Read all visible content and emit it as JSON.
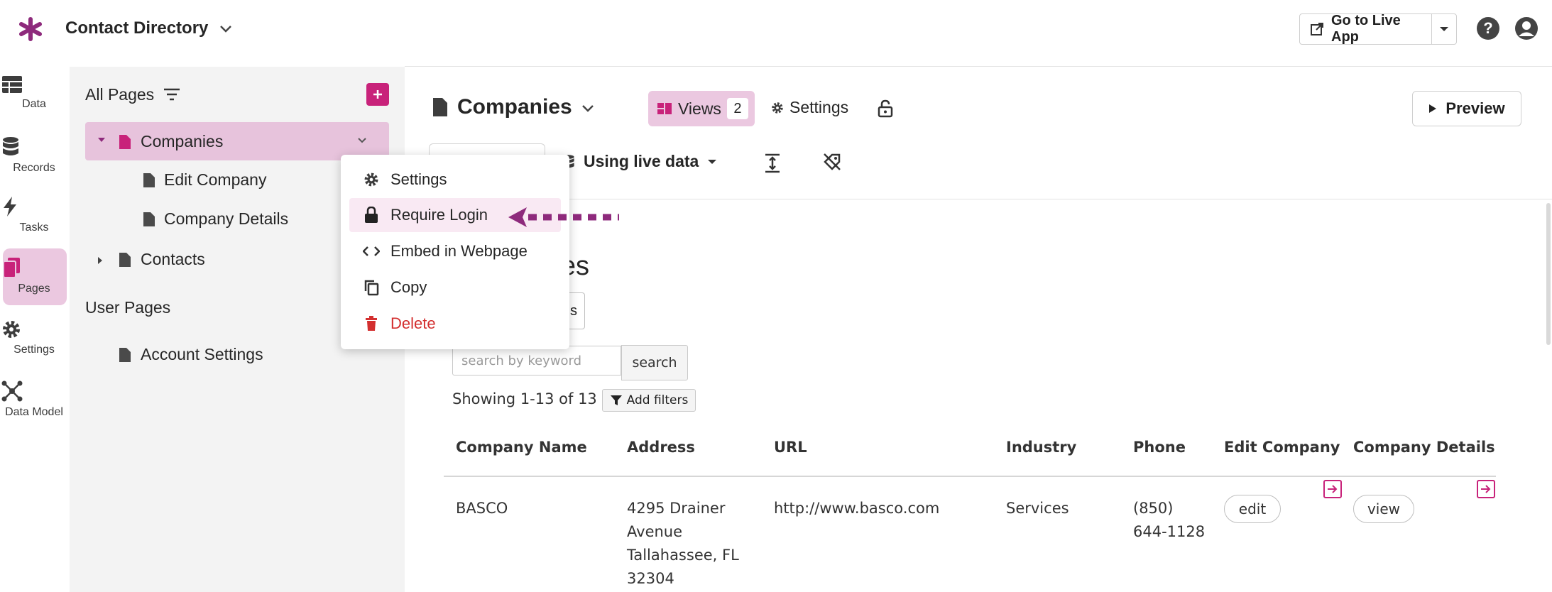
{
  "header": {
    "app_title": "Contact Directory",
    "live_app_label": "Go to Live App"
  },
  "nav": {
    "items": [
      {
        "label": "Data",
        "icon": "table-icon"
      },
      {
        "label": "Records",
        "icon": "database-icon"
      },
      {
        "label": "Tasks",
        "icon": "bolt-icon"
      },
      {
        "label": "Pages",
        "icon": "pages-icon",
        "active": true
      },
      {
        "label": "Settings",
        "icon": "gear-icon"
      },
      {
        "label": "Data Model",
        "icon": "data-model-icon"
      }
    ]
  },
  "pages_panel": {
    "title": "All Pages",
    "tree": {
      "companies": "Companies",
      "edit_company": "Edit Company",
      "company_details": "Company Details",
      "contacts": "Contacts"
    },
    "user_pages_title": "User Pages",
    "account_settings": "Account Settings"
  },
  "context_menu": {
    "settings": "Settings",
    "require_login": "Require Login",
    "embed": "Embed in Webpage",
    "copy": "Copy",
    "delete": "Delete"
  },
  "main": {
    "page_title": "Companies",
    "views_label": "Views",
    "views_count": "2",
    "settings_label": "Settings",
    "preview_label": "Preview",
    "live_data_label": "Using live data"
  },
  "preview": {
    "heading_fragment": "es",
    "button_fragment": "s",
    "search_placeholder": "search by keyword",
    "search_button": "search",
    "showing": "Showing 1-13 of 13",
    "add_filters": "Add filters",
    "columns": [
      "Company Name",
      "Address",
      "URL",
      "Industry",
      "Phone",
      "Edit Company",
      "Company Details"
    ],
    "rows": [
      {
        "company": "BASCO",
        "address": [
          "4295 Drainer",
          "Avenue",
          "Tallahassee, FL",
          "32304"
        ],
        "url": "http://www.basco.com",
        "industry": "Services",
        "phone": [
          "(850)",
          "644-1128"
        ],
        "edit": "edit",
        "view": "view"
      }
    ]
  },
  "colors": {
    "accent": "#c8227a",
    "accent_light": "#ebc8e0",
    "delete": "#d32f2f",
    "arrow": "#8e2a7c"
  }
}
